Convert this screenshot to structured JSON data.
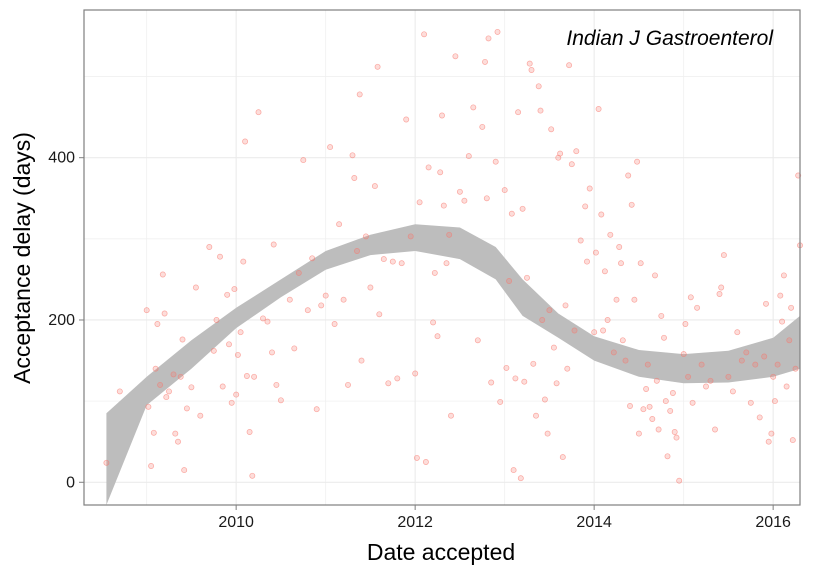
{
  "chart_data": {
    "type": "scatter",
    "xlabel": "Date accepted",
    "ylabel": "Acceptance delay (days)",
    "annotation": "Indian J Gastroenterol",
    "xlim": [
      2008.3,
      2016.3
    ],
    "ylim": [
      -28,
      582
    ],
    "x_ticks": [
      2010,
      2012,
      2014,
      2016
    ],
    "y_ticks": [
      0,
      200,
      400
    ],
    "grid": true,
    "point_color": "#f8766d",
    "band_color": "#bdbdbd",
    "points": [
      [
        2008.55,
        24
      ],
      [
        2008.7,
        112
      ],
      [
        2009.0,
        212
      ],
      [
        2009.02,
        93
      ],
      [
        2009.05,
        20
      ],
      [
        2009.08,
        61
      ],
      [
        2009.1,
        140
      ],
      [
        2009.12,
        195
      ],
      [
        2009.15,
        120
      ],
      [
        2009.18,
        256
      ],
      [
        2009.2,
        208
      ],
      [
        2009.22,
        105
      ],
      [
        2009.25,
        112
      ],
      [
        2009.3,
        133
      ],
      [
        2009.32,
        60
      ],
      [
        2009.35,
        50
      ],
      [
        2009.38,
        130
      ],
      [
        2009.4,
        176
      ],
      [
        2009.42,
        15
      ],
      [
        2009.45,
        91
      ],
      [
        2009.5,
        117
      ],
      [
        2009.55,
        240
      ],
      [
        2009.6,
        82
      ],
      [
        2009.7,
        290
      ],
      [
        2009.75,
        162
      ],
      [
        2009.78,
        200
      ],
      [
        2009.82,
        278
      ],
      [
        2009.85,
        118
      ],
      [
        2009.9,
        231
      ],
      [
        2009.92,
        170
      ],
      [
        2009.95,
        98
      ],
      [
        2009.98,
        238
      ],
      [
        2010.0,
        108
      ],
      [
        2010.02,
        157
      ],
      [
        2010.05,
        185
      ],
      [
        2010.08,
        272
      ],
      [
        2010.1,
        420
      ],
      [
        2010.12,
        131
      ],
      [
        2010.15,
        62
      ],
      [
        2010.18,
        8
      ],
      [
        2010.2,
        130
      ],
      [
        2010.25,
        456
      ],
      [
        2010.3,
        202
      ],
      [
        2010.35,
        198
      ],
      [
        2010.4,
        160
      ],
      [
        2010.42,
        293
      ],
      [
        2010.45,
        120
      ],
      [
        2010.5,
        101
      ],
      [
        2010.6,
        225
      ],
      [
        2010.65,
        165
      ],
      [
        2010.7,
        258
      ],
      [
        2010.75,
        397
      ],
      [
        2010.8,
        212
      ],
      [
        2010.85,
        276
      ],
      [
        2010.9,
        90
      ],
      [
        2010.95,
        218
      ],
      [
        2011.0,
        230
      ],
      [
        2011.05,
        413
      ],
      [
        2011.1,
        195
      ],
      [
        2011.15,
        318
      ],
      [
        2011.2,
        225
      ],
      [
        2011.25,
        120
      ],
      [
        2011.3,
        403
      ],
      [
        2011.32,
        375
      ],
      [
        2011.35,
        285
      ],
      [
        2011.38,
        478
      ],
      [
        2011.4,
        150
      ],
      [
        2011.45,
        303
      ],
      [
        2011.5,
        240
      ],
      [
        2011.55,
        365
      ],
      [
        2011.58,
        512
      ],
      [
        2011.6,
        207
      ],
      [
        2011.65,
        275
      ],
      [
        2011.7,
        122
      ],
      [
        2011.75,
        272
      ],
      [
        2011.8,
        128
      ],
      [
        2011.85,
        270
      ],
      [
        2011.9,
        447
      ],
      [
        2011.95,
        303
      ],
      [
        2012.0,
        134
      ],
      [
        2012.02,
        30
      ],
      [
        2012.05,
        345
      ],
      [
        2012.1,
        552
      ],
      [
        2012.12,
        25
      ],
      [
        2012.15,
        388
      ],
      [
        2012.2,
        197
      ],
      [
        2012.22,
        258
      ],
      [
        2012.25,
        180
      ],
      [
        2012.28,
        382
      ],
      [
        2012.3,
        452
      ],
      [
        2012.32,
        341
      ],
      [
        2012.35,
        270
      ],
      [
        2012.38,
        305
      ],
      [
        2012.4,
        82
      ],
      [
        2012.45,
        525
      ],
      [
        2012.5,
        358
      ],
      [
        2012.55,
        347
      ],
      [
        2012.6,
        402
      ],
      [
        2012.65,
        462
      ],
      [
        2012.7,
        175
      ],
      [
        2012.75,
        438
      ],
      [
        2012.78,
        518
      ],
      [
        2012.8,
        350
      ],
      [
        2012.82,
        547
      ],
      [
        2012.85,
        123
      ],
      [
        2012.9,
        395
      ],
      [
        2012.92,
        555
      ],
      [
        2012.95,
        99
      ],
      [
        2013.0,
        360
      ],
      [
        2013.02,
        141
      ],
      [
        2013.05,
        248
      ],
      [
        2013.08,
        331
      ],
      [
        2013.1,
        15
      ],
      [
        2013.12,
        128
      ],
      [
        2013.15,
        456
      ],
      [
        2013.18,
        5
      ],
      [
        2013.2,
        337
      ],
      [
        2013.22,
        124
      ],
      [
        2013.25,
        252
      ],
      [
        2013.28,
        516
      ],
      [
        2013.3,
        508
      ],
      [
        2013.32,
        146
      ],
      [
        2013.35,
        82
      ],
      [
        2013.38,
        488
      ],
      [
        2013.4,
        458
      ],
      [
        2013.42,
        200
      ],
      [
        2013.45,
        102
      ],
      [
        2013.48,
        60
      ],
      [
        2013.5,
        212
      ],
      [
        2013.52,
        435
      ],
      [
        2013.55,
        166
      ],
      [
        2013.58,
        122
      ],
      [
        2013.6,
        400
      ],
      [
        2013.62,
        405
      ],
      [
        2013.65,
        31
      ],
      [
        2013.68,
        218
      ],
      [
        2013.7,
        140
      ],
      [
        2013.72,
        514
      ],
      [
        2013.75,
        392
      ],
      [
        2013.78,
        187
      ],
      [
        2013.8,
        408
      ],
      [
        2013.85,
        298
      ],
      [
        2013.9,
        340
      ],
      [
        2013.92,
        272
      ],
      [
        2013.95,
        362
      ],
      [
        2014.0,
        185
      ],
      [
        2014.02,
        283
      ],
      [
        2014.05,
        460
      ],
      [
        2014.08,
        330
      ],
      [
        2014.1,
        187
      ],
      [
        2014.12,
        260
      ],
      [
        2014.15,
        200
      ],
      [
        2014.18,
        305
      ],
      [
        2014.22,
        160
      ],
      [
        2014.25,
        225
      ],
      [
        2014.28,
        290
      ],
      [
        2014.3,
        270
      ],
      [
        2014.32,
        175
      ],
      [
        2014.35,
        150
      ],
      [
        2014.38,
        378
      ],
      [
        2014.4,
        94
      ],
      [
        2014.42,
        342
      ],
      [
        2014.45,
        225
      ],
      [
        2014.48,
        395
      ],
      [
        2014.5,
        60
      ],
      [
        2014.52,
        270
      ],
      [
        2014.55,
        90
      ],
      [
        2014.58,
        115
      ],
      [
        2014.6,
        145
      ],
      [
        2014.62,
        93
      ],
      [
        2014.65,
        78
      ],
      [
        2014.68,
        255
      ],
      [
        2014.7,
        125
      ],
      [
        2014.72,
        65
      ],
      [
        2014.75,
        205
      ],
      [
        2014.78,
        178
      ],
      [
        2014.8,
        100
      ],
      [
        2014.82,
        32
      ],
      [
        2014.85,
        88
      ],
      [
        2014.88,
        110
      ],
      [
        2014.9,
        62
      ],
      [
        2014.92,
        55
      ],
      [
        2014.95,
        2
      ],
      [
        2015.0,
        158
      ],
      [
        2015.02,
        195
      ],
      [
        2015.05,
        130
      ],
      [
        2015.08,
        228
      ],
      [
        2015.1,
        98
      ],
      [
        2015.15,
        215
      ],
      [
        2015.2,
        145
      ],
      [
        2015.25,
        118
      ],
      [
        2015.3,
        125
      ],
      [
        2015.35,
        65
      ],
      [
        2015.4,
        232
      ],
      [
        2015.42,
        240
      ],
      [
        2015.45,
        280
      ],
      [
        2015.5,
        130
      ],
      [
        2015.55,
        112
      ],
      [
        2015.6,
        185
      ],
      [
        2015.65,
        150
      ],
      [
        2015.7,
        160
      ],
      [
        2015.75,
        98
      ],
      [
        2015.8,
        145
      ],
      [
        2015.85,
        80
      ],
      [
        2015.9,
        155
      ],
      [
        2015.92,
        220
      ],
      [
        2015.95,
        50
      ],
      [
        2015.98,
        60
      ],
      [
        2016.0,
        130
      ],
      [
        2016.02,
        100
      ],
      [
        2016.05,
        145
      ],
      [
        2016.08,
        230
      ],
      [
        2016.1,
        198
      ],
      [
        2016.12,
        255
      ],
      [
        2016.15,
        118
      ],
      [
        2016.18,
        175
      ],
      [
        2016.2,
        215
      ],
      [
        2016.22,
        52
      ],
      [
        2016.25,
        140
      ],
      [
        2016.28,
        378
      ],
      [
        2016.3,
        292
      ]
    ],
    "smooth_band": {
      "x": [
        2008.55,
        2009.0,
        2009.5,
        2010.0,
        2010.5,
        2011.0,
        2011.5,
        2012.0,
        2012.5,
        2012.9,
        2013.2,
        2013.6,
        2014.0,
        2014.5,
        2015.0,
        2015.5,
        2016.0,
        2016.3
      ],
      "upper": [
        85,
        130,
        175,
        215,
        250,
        285,
        305,
        318,
        314,
        290,
        250,
        208,
        180,
        163,
        158,
        162,
        178,
        205
      ],
      "lower": [
        -28,
        95,
        140,
        190,
        228,
        262,
        280,
        285,
        275,
        250,
        205,
        178,
        150,
        130,
        122,
        123,
        130,
        140
      ]
    }
  }
}
